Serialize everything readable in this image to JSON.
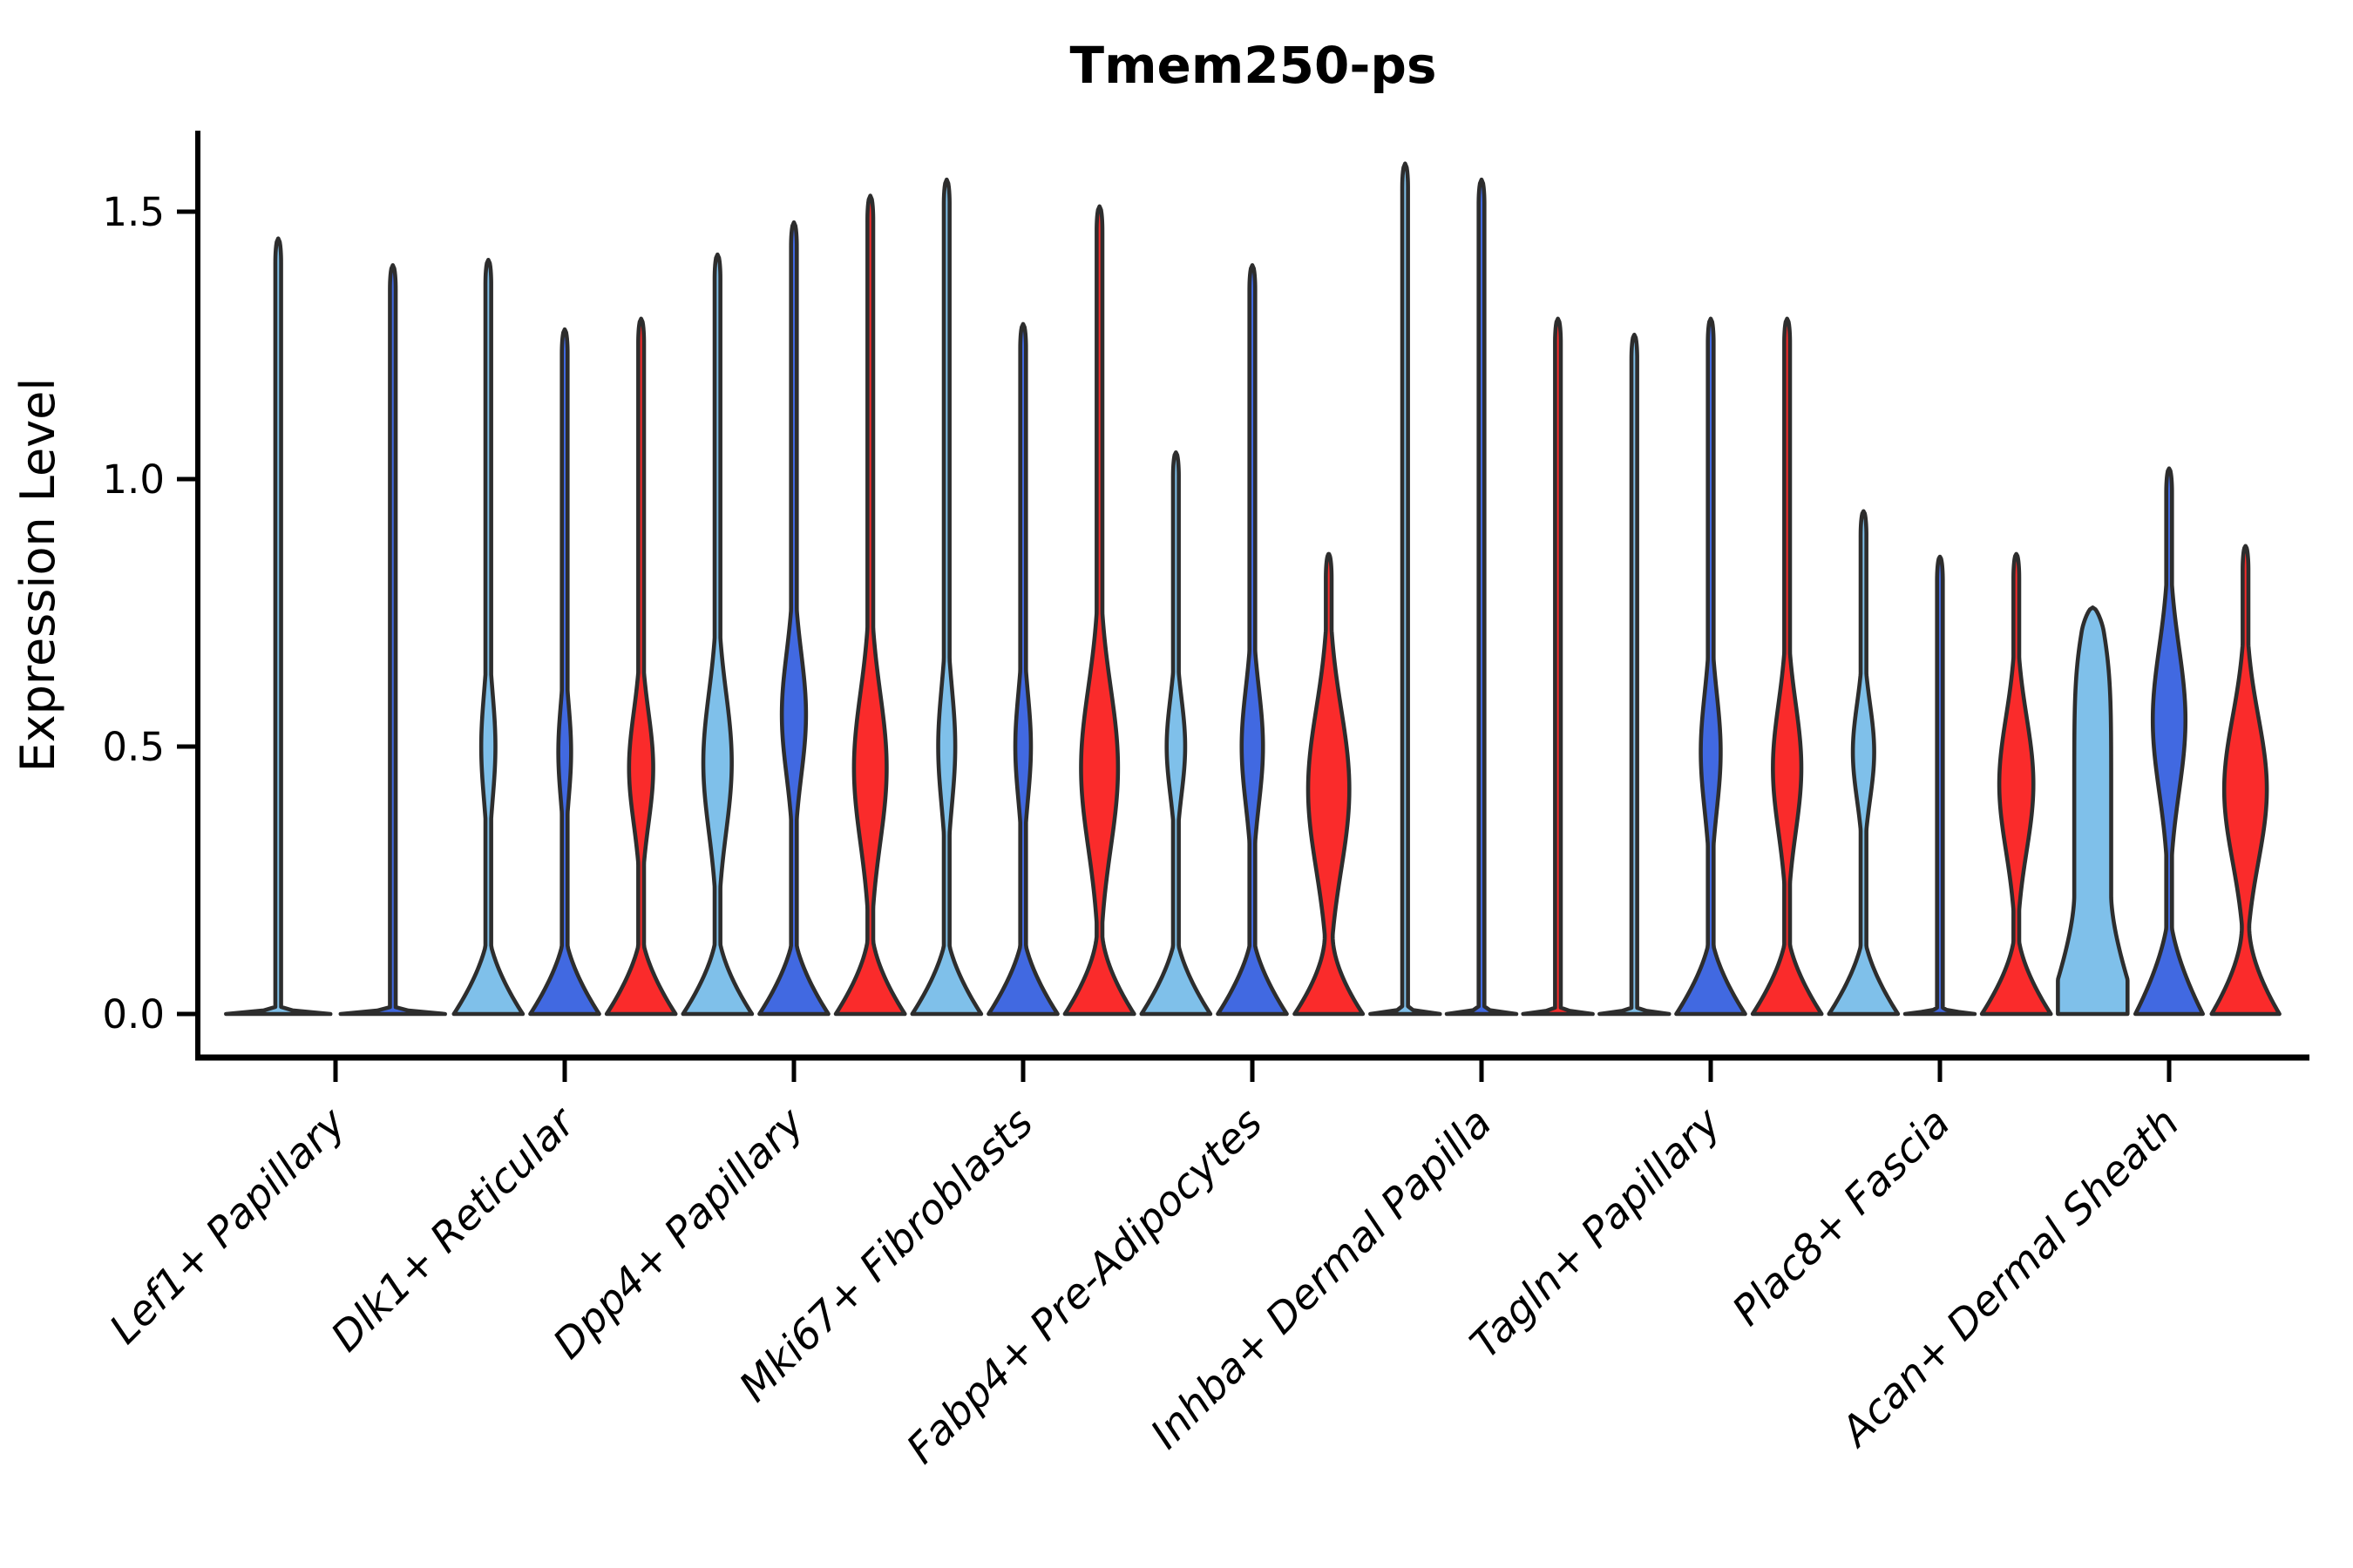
{
  "chart_data": {
    "type": "violin",
    "title": "Tmem250-ps",
    "ylabel": "Expression Level",
    "xlabel": "",
    "ylim": [
      0,
      1.66
    ],
    "ytick_values": [
      0.0,
      0.5,
      1.0,
      1.5
    ],
    "ytick_labels": [
      "0.0",
      "0.5",
      "1.0",
      "1.5"
    ],
    "grid": false,
    "legend_position": "none",
    "series": [
      "light_blue",
      "dark_blue",
      "red"
    ],
    "colors": {
      "light_blue": "#7FC0EA",
      "dark_blue": "#4169E1",
      "red": "#FA2B2B",
      "outline": "#2D2D2D",
      "axis": "#000000"
    },
    "categories": [
      "Lef1+ Papillary",
      "Dlk1+ Reticular",
      "Dpp4+ Papillary",
      "Mki67+ Fibroblasts",
      "Fabp4+ Pre-Adipocytes",
      "Inhba+ Dermal Papilla",
      "Tagln+ Papillary",
      "Plac8+ Fascia",
      "Acan+ Dermal Sheath"
    ],
    "violins": [
      {
        "category": "Lef1+ Papillary",
        "cells": [
          {
            "series": "light_blue",
            "shape": "spike",
            "max": 1.45,
            "bulge": null,
            "base": {
              "h": 0.012,
              "w": 0.98
            }
          },
          {
            "series": "dark_blue",
            "shape": "spike",
            "max": 1.4,
            "bulge": null,
            "base": {
              "h": 0.012,
              "w": 0.98
            }
          },
          null
        ]
      },
      {
        "category": "Dlk1+ Reticular",
        "cells": [
          {
            "series": "light_blue",
            "shape": "violin",
            "max": 1.41,
            "bulge": {
              "c": 0.5,
              "r": 0.2,
              "w": 0.2
            },
            "base": {
              "h": 0.16,
              "w": 0.97
            }
          },
          {
            "series": "dark_blue",
            "shape": "violin",
            "max": 1.28,
            "bulge": {
              "c": 0.49,
              "r": 0.18,
              "w": 0.18
            },
            "base": {
              "h": 0.16,
              "w": 0.97
            }
          },
          {
            "series": "red",
            "shape": "violin",
            "max": 1.3,
            "bulge": {
              "c": 0.46,
              "r": 0.21,
              "w": 0.34
            },
            "base": {
              "h": 0.16,
              "w": 0.97
            }
          }
        ]
      },
      {
        "category": "Dpp4+ Papillary",
        "cells": [
          {
            "series": "light_blue",
            "shape": "violin",
            "max": 1.42,
            "bulge": {
              "c": 0.47,
              "r": 0.26,
              "w": 0.4
            },
            "base": {
              "h": 0.16,
              "w": 0.97
            }
          },
          {
            "series": "dark_blue",
            "shape": "violin",
            "max": 1.48,
            "bulge": {
              "c": 0.56,
              "r": 0.23,
              "w": 0.34
            },
            "base": {
              "h": 0.16,
              "w": 0.97
            }
          },
          {
            "series": "red",
            "shape": "violin",
            "max": 1.53,
            "bulge": {
              "c": 0.46,
              "r": 0.28,
              "w": 0.46
            },
            "base": {
              "h": 0.16,
              "w": 0.97
            }
          }
        ]
      },
      {
        "category": "Mki67+ Fibroblasts",
        "cells": [
          {
            "series": "light_blue",
            "shape": "violin",
            "max": 1.56,
            "bulge": {
              "c": 0.5,
              "r": 0.22,
              "w": 0.24
            },
            "base": {
              "h": 0.16,
              "w": 0.97
            }
          },
          {
            "series": "dark_blue",
            "shape": "violin",
            "max": 1.29,
            "bulge": {
              "c": 0.5,
              "r": 0.2,
              "w": 0.22
            },
            "base": {
              "h": 0.16,
              "w": 0.97
            }
          },
          {
            "series": "red",
            "shape": "violin",
            "max": 1.51,
            "bulge": {
              "c": 0.46,
              "r": 0.3,
              "w": 0.52
            },
            "base": {
              "h": 0.16,
              "w": 0.97
            }
          }
        ]
      },
      {
        "category": "Fabp4+ Pre-Adipocytes",
        "cells": [
          {
            "series": "light_blue",
            "shape": "violin",
            "max": 1.05,
            "bulge": {
              "c": 0.5,
              "r": 0.18,
              "w": 0.26
            },
            "base": {
              "h": 0.16,
              "w": 0.97
            }
          },
          {
            "series": "dark_blue",
            "shape": "violin",
            "max": 1.4,
            "bulge": {
              "c": 0.5,
              "r": 0.22,
              "w": 0.3
            },
            "base": {
              "h": 0.16,
              "w": 0.97
            }
          },
          {
            "series": "red",
            "shape": "violin",
            "max": 0.86,
            "bulge": {
              "c": 0.42,
              "r": 0.3,
              "w": 0.58
            },
            "base": {
              "h": 0.15,
              "w": 0.95
            }
          }
        ]
      },
      {
        "category": "Inhba+ Dermal Papilla",
        "cells": [
          {
            "series": "light_blue",
            "shape": "spike",
            "max": 1.59,
            "bulge": null,
            "base": {
              "h": 0.012,
              "w": 0.98
            }
          },
          {
            "series": "dark_blue",
            "shape": "spike",
            "max": 1.56,
            "bulge": null,
            "base": {
              "h": 0.012,
              "w": 0.98
            }
          },
          {
            "series": "red",
            "shape": "spike",
            "max": 1.3,
            "bulge": null,
            "base": {
              "h": 0.012,
              "w": 0.98
            }
          }
        ]
      },
      {
        "category": "Tagln+ Papillary",
        "cells": [
          {
            "series": "light_blue",
            "shape": "spike",
            "max": 1.27,
            "bulge": null,
            "base": {
              "h": 0.012,
              "w": 0.98
            }
          },
          {
            "series": "dark_blue",
            "shape": "violin",
            "max": 1.3,
            "bulge": {
              "c": 0.49,
              "r": 0.22,
              "w": 0.28
            },
            "base": {
              "h": 0.16,
              "w": 0.97
            }
          },
          {
            "series": "red",
            "shape": "violin",
            "max": 1.3,
            "bulge": {
              "c": 0.46,
              "r": 0.24,
              "w": 0.4
            },
            "base": {
              "h": 0.16,
              "w": 0.97
            }
          }
        ]
      },
      {
        "category": "Plac8+ Fascia",
        "cells": [
          {
            "series": "light_blue",
            "shape": "violin",
            "max": 0.94,
            "bulge": {
              "c": 0.49,
              "r": 0.18,
              "w": 0.3
            },
            "base": {
              "h": 0.16,
              "w": 0.97
            }
          },
          {
            "series": "dark_blue",
            "shape": "spike",
            "max": 0.855,
            "bulge": null,
            "base": {
              "h": 0.012,
              "w": 0.98
            }
          },
          {
            "series": "red",
            "shape": "violin",
            "max": 0.86,
            "bulge": {
              "c": 0.43,
              "r": 0.25,
              "w": 0.48
            },
            "base": {
              "h": 0.16,
              "w": 0.97
            }
          }
        ]
      },
      {
        "category": "Acan+ Dermal Sheath",
        "cells": [
          {
            "series": "light_blue",
            "shape": "column",
            "max": 0.76,
            "bulge": {
              "c": 0.33,
              "r": 0.43,
              "w": 0.52,
              "flat": true
            },
            "base": {
              "h": 0.22,
              "w": 0.85
            }
          },
          {
            "series": "dark_blue",
            "shape": "violin",
            "max": 1.02,
            "bulge": {
              "c": 0.55,
              "r": 0.27,
              "w": 0.46
            },
            "base": {
              "h": 0.2,
              "w": 0.95
            }
          },
          {
            "series": "red",
            "shape": "violin",
            "max": 0.875,
            "bulge": {
              "c": 0.42,
              "r": 0.27,
              "w": 0.6
            },
            "base": {
              "h": 0.17,
              "w": 0.95
            }
          }
        ]
      }
    ]
  }
}
